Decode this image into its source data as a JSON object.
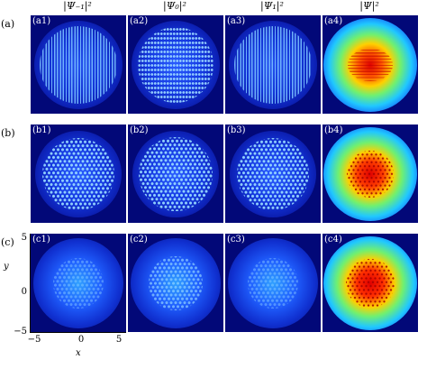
{
  "columns": [
    {
      "title": "|Ψ₋₁|²"
    },
    {
      "title": "|Ψ₀|²"
    },
    {
      "title": "|Ψ₁|²"
    },
    {
      "title": "|Ψ|²"
    }
  ],
  "rows": [
    {
      "label": "(a)",
      "panels": [
        "(a1)",
        "(a2)",
        "(a3)",
        "(a4)"
      ]
    },
    {
      "label": "(b)",
      "panels": [
        "(b1)",
        "(b2)",
        "(b3)",
        "(b4)"
      ]
    },
    {
      "label": "(c)",
      "panels": [
        "(c1)",
        "(c2)",
        "(c3)",
        "(c4)"
      ]
    }
  ],
  "axes": {
    "xlabel": "x",
    "ylabel": "y",
    "x_ticks": [
      "−5",
      "0",
      "5"
    ],
    "y_ticks": [
      "5",
      "0",
      "−5"
    ],
    "x_range": [
      -5,
      5
    ],
    "y_range": [
      -5,
      5
    ]
  },
  "colors": {
    "background": "#020878",
    "low": "#1a3dff",
    "mid": "#30c8ff",
    "high": "#ffd000",
    "peak": "#c00000"
  }
}
